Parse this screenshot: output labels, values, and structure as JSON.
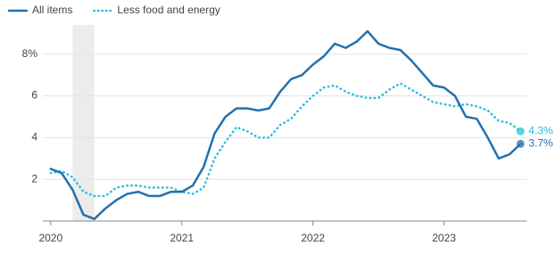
{
  "chart_data": {
    "type": "line",
    "x": [
      2020,
      2020.0833,
      2020.1667,
      2020.25,
      2020.3333,
      2020.4167,
      2020.5,
      2020.5833,
      2020.6667,
      2020.75,
      2020.8333,
      2020.9167,
      2021,
      2021.0833,
      2021.1667,
      2021.25,
      2021.3333,
      2021.4167,
      2021.5,
      2021.5833,
      2021.6667,
      2021.75,
      2021.8333,
      2021.9167,
      2022,
      2022.0833,
      2022.1667,
      2022.25,
      2022.3333,
      2022.4167,
      2022.5,
      2022.5833,
      2022.6667,
      2022.75,
      2022.8333,
      2022.9167,
      2023,
      2023.0833,
      2023.1667,
      2023.25,
      2023.3333,
      2023.4167,
      2023.5,
      2023.5833
    ],
    "series": [
      {
        "name": "All items",
        "color": "#2371ae",
        "dash": false,
        "values": [
          2.5,
          2.3,
          1.5,
          0.3,
          0.1,
          0.6,
          1.0,
          1.3,
          1.4,
          1.2,
          1.2,
          1.4,
          1.4,
          1.7,
          2.6,
          4.2,
          5.0,
          5.4,
          5.4,
          5.3,
          5.4,
          6.2,
          6.8,
          7.0,
          7.5,
          7.9,
          8.5,
          8.3,
          8.6,
          9.1,
          8.5,
          8.3,
          8.2,
          7.7,
          7.1,
          6.5,
          6.4,
          6.0,
          5.0,
          4.9,
          4.0,
          3.0,
          3.2,
          3.7
        ],
        "value_labels": [
          null,
          null,
          null,
          null,
          null,
          null,
          null,
          null,
          null,
          null,
          null,
          null,
          null,
          null,
          null,
          null,
          null,
          null,
          null,
          null,
          null,
          null,
          null,
          null,
          null,
          null,
          null,
          null,
          null,
          null,
          null,
          null,
          null,
          null,
          null,
          null,
          null,
          null,
          null,
          null,
          null,
          null,
          null,
          "3.7%"
        ]
      },
      {
        "name": "Less food and energy",
        "color": "#27c0de",
        "dash": true,
        "values": [
          2.3,
          2.4,
          2.1,
          1.4,
          1.2,
          1.2,
          1.6,
          1.7,
          1.7,
          1.6,
          1.6,
          1.6,
          1.4,
          1.3,
          1.6,
          3.0,
          3.8,
          4.5,
          4.3,
          4.0,
          4.0,
          4.6,
          4.9,
          5.5,
          6.0,
          6.4,
          6.5,
          6.2,
          6.0,
          5.9,
          5.9,
          6.3,
          6.6,
          6.3,
          6.0,
          5.7,
          5.6,
          5.5,
          5.6,
          5.5,
          5.3,
          4.8,
          4.7,
          4.3
        ],
        "value_labels": [
          null,
          null,
          null,
          null,
          null,
          null,
          null,
          null,
          null,
          null,
          null,
          null,
          null,
          null,
          null,
          null,
          null,
          null,
          null,
          null,
          null,
          null,
          null,
          null,
          null,
          null,
          null,
          null,
          null,
          null,
          null,
          null,
          null,
          null,
          null,
          null,
          null,
          null,
          null,
          null,
          null,
          null,
          null,
          "4.3%"
        ]
      }
    ],
    "shade": [
      2020.1667,
      2020.3333
    ],
    "xlim": [
      2019.94,
      2023.63
    ],
    "xticks": [
      2020,
      2021,
      2022,
      2023
    ],
    "ylim": [
      0,
      9.4
    ],
    "yticks": [
      2,
      4,
      6,
      {
        "value": 8,
        "label": "8%"
      }
    ],
    "grid": true
  }
}
